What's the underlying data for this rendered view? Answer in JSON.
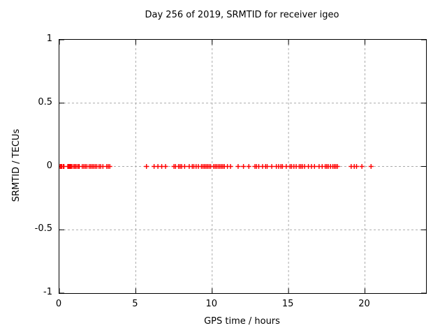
{
  "window": {
    "background": "#ffffff"
  },
  "chart_data": {
    "type": "scatter",
    "title": "Day 256 of 2019, SRMTID for receiver igeo",
    "xlabel": "GPS time / hours",
    "ylabel": "SRMTID / TECUs",
    "xlim": [
      0,
      24
    ],
    "ylim": [
      -1,
      1
    ],
    "xticks": [
      0,
      5,
      10,
      15,
      20
    ],
    "yticks": [
      1,
      0.5,
      0,
      -0.5,
      -1
    ],
    "xtick_labels": [
      "0",
      "5",
      "10",
      "15",
      "20"
    ],
    "ytick_labels": [
      "1",
      "0.5",
      "0",
      "-0.5",
      "-1"
    ],
    "grid": true,
    "grid_color": "#aaaaaa",
    "grid_style": "dashed",
    "legend": "none",
    "marker": "plus",
    "marker_color": "#ff0000",
    "marker_size": 7,
    "series": [
      {
        "name": "SRMTID",
        "points": [
          [
            0.05,
            0
          ],
          [
            0.1,
            0
          ],
          [
            0.15,
            0
          ],
          [
            0.25,
            0
          ],
          [
            0.3,
            0
          ],
          [
            0.55,
            0
          ],
          [
            0.6,
            0
          ],
          [
            0.65,
            0
          ],
          [
            0.7,
            0
          ],
          [
            0.75,
            0
          ],
          [
            0.8,
            0
          ],
          [
            0.9,
            0
          ],
          [
            1.0,
            0
          ],
          [
            1.05,
            0
          ],
          [
            1.15,
            0
          ],
          [
            1.25,
            0
          ],
          [
            1.3,
            0
          ],
          [
            1.5,
            0
          ],
          [
            1.6,
            0
          ],
          [
            1.7,
            0
          ],
          [
            1.8,
            0
          ],
          [
            1.95,
            0
          ],
          [
            2.05,
            0
          ],
          [
            2.15,
            0
          ],
          [
            2.25,
            0
          ],
          [
            2.35,
            0
          ],
          [
            2.45,
            0
          ],
          [
            2.6,
            0
          ],
          [
            2.7,
            0
          ],
          [
            2.85,
            0
          ],
          [
            3.1,
            0
          ],
          [
            3.2,
            0
          ],
          [
            3.3,
            0
          ],
          [
            5.7,
            0
          ],
          [
            6.2,
            0
          ],
          [
            6.45,
            0
          ],
          [
            6.7,
            0
          ],
          [
            6.95,
            0
          ],
          [
            7.5,
            0
          ],
          [
            7.6,
            0
          ],
          [
            7.8,
            0
          ],
          [
            7.9,
            0
          ],
          [
            8.0,
            0
          ],
          [
            8.2,
            0
          ],
          [
            8.5,
            0
          ],
          [
            8.7,
            0
          ],
          [
            8.8,
            0
          ],
          [
            8.95,
            0
          ],
          [
            9.1,
            0
          ],
          [
            9.3,
            0
          ],
          [
            9.4,
            0
          ],
          [
            9.5,
            0
          ],
          [
            9.6,
            0
          ],
          [
            9.7,
            0
          ],
          [
            9.8,
            0
          ],
          [
            9.9,
            0
          ],
          [
            10.1,
            0
          ],
          [
            10.2,
            0
          ],
          [
            10.3,
            0
          ],
          [
            10.4,
            0
          ],
          [
            10.5,
            0
          ],
          [
            10.6,
            0
          ],
          [
            10.7,
            0
          ],
          [
            10.8,
            0
          ],
          [
            11.0,
            0
          ],
          [
            11.2,
            0
          ],
          [
            11.7,
            0
          ],
          [
            12.05,
            0
          ],
          [
            12.4,
            0
          ],
          [
            12.8,
            0
          ],
          [
            12.9,
            0
          ],
          [
            13.05,
            0
          ],
          [
            13.3,
            0
          ],
          [
            13.5,
            0
          ],
          [
            13.6,
            0
          ],
          [
            13.9,
            0
          ],
          [
            14.2,
            0
          ],
          [
            14.35,
            0
          ],
          [
            14.5,
            0
          ],
          [
            14.6,
            0
          ],
          [
            14.85,
            0
          ],
          [
            15.1,
            0
          ],
          [
            15.2,
            0
          ],
          [
            15.35,
            0
          ],
          [
            15.5,
            0
          ],
          [
            15.7,
            0
          ],
          [
            15.8,
            0
          ],
          [
            15.9,
            0
          ],
          [
            16.05,
            0
          ],
          [
            16.3,
            0
          ],
          [
            16.5,
            0
          ],
          [
            16.7,
            0
          ],
          [
            17.0,
            0
          ],
          [
            17.2,
            0
          ],
          [
            17.4,
            0
          ],
          [
            17.5,
            0
          ],
          [
            17.6,
            0
          ],
          [
            17.75,
            0
          ],
          [
            17.9,
            0
          ],
          [
            18.0,
            0
          ],
          [
            18.1,
            0
          ],
          [
            18.2,
            0
          ],
          [
            19.1,
            0
          ],
          [
            19.3,
            0
          ],
          [
            19.45,
            0
          ],
          [
            19.8,
            0
          ],
          [
            20.4,
            0
          ]
        ]
      }
    ]
  }
}
